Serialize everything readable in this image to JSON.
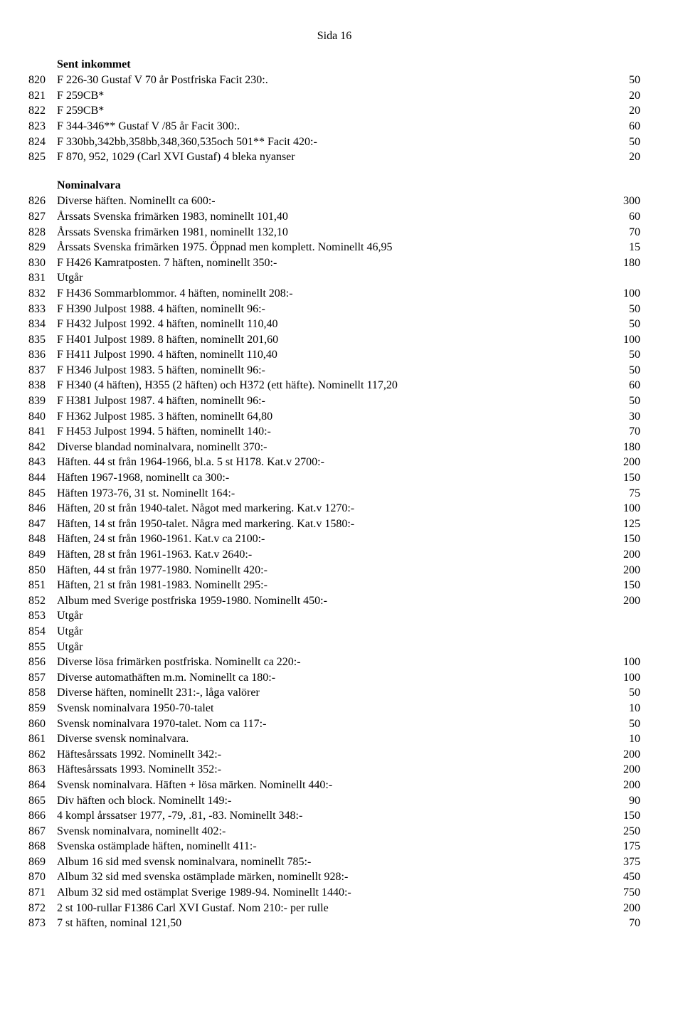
{
  "page_header": "Sida 16",
  "sections": [
    {
      "title": "Sent inkommet",
      "rows": [
        {
          "n": "820",
          "d": "F 226-30 Gustaf V 70 år Postfriska Facit 230:.",
          "v": "50"
        },
        {
          "n": "821",
          "d": "F 259CB*",
          "v": "20"
        },
        {
          "n": "822",
          "d": "F 259CB*",
          "v": "20"
        },
        {
          "n": "823",
          "d": "F 344-346** Gustaf V /85 år Facit 300:.",
          "v": "60"
        },
        {
          "n": "824",
          "d": "F 330bb,342bb,358bb,348,360,535och 501** Facit 420:-",
          "v": "50"
        },
        {
          "n": "825",
          "d": "F 870, 952, 1029 (Carl XVI Gustaf) 4 bleka nyanser",
          "v": "20"
        }
      ]
    },
    {
      "title": "Nominalvara",
      "rows": [
        {
          "n": "826",
          "d": "Diverse häften. Nominellt ca 600:-",
          "v": "300"
        },
        {
          "n": "827",
          "d": "Årssats Svenska frimärken 1983, nominellt 101,40",
          "v": "60"
        },
        {
          "n": "828",
          "d": "Årssats Svenska frimärken 1981, nominellt 132,10",
          "v": "70"
        },
        {
          "n": "829",
          "d": "Årssats Svenska frimärken 1975. Öppnad men komplett. Nominellt 46,95",
          "v": "15"
        },
        {
          "n": "830",
          "d": "F H426 Kamratposten. 7 häften, nominellt 350:-",
          "v": "180"
        },
        {
          "n": "831",
          "d": "Utgår",
          "v": ""
        },
        {
          "n": "832",
          "d": "F H436 Sommarblommor. 4 häften, nominellt 208:-",
          "v": "100"
        },
        {
          "n": "833",
          "d": "F H390 Julpost 1988. 4 häften, nominellt 96:-",
          "v": "50"
        },
        {
          "n": "834",
          "d": "F H432 Julpost 1992. 4 häften, nominellt 110,40",
          "v": "50"
        },
        {
          "n": "835",
          "d": "F H401 Julpost 1989. 8 häften, nominellt 201,60",
          "v": "100"
        },
        {
          "n": "836",
          "d": "F H411 Julpost 1990. 4 häften, nominellt 110,40",
          "v": "50"
        },
        {
          "n": "837",
          "d": "F H346 Julpost 1983. 5 häften, nominellt 96:-",
          "v": "50"
        },
        {
          "n": "838",
          "d": "F H340 (4 häften), H355 (2 häften) och H372 (ett häfte). Nominellt 117,20",
          "v": "60"
        },
        {
          "n": "839",
          "d": "F H381 Julpost 1987. 4 häften, nominellt 96:-",
          "v": "50"
        },
        {
          "n": "840",
          "d": "F H362 Julpost 1985. 3 häften, nominellt 64,80",
          "v": "30"
        },
        {
          "n": "841",
          "d": "F H453 Julpost 1994. 5 häften, nominellt 140:-",
          "v": "70"
        },
        {
          "n": "842",
          "d": "Diverse blandad nominalvara, nominellt 370:-",
          "v": "180"
        },
        {
          "n": "843",
          "d": "Häften. 44 st från 1964-1966, bl.a. 5 st H178. Kat.v 2700:-",
          "v": "200"
        },
        {
          "n": "844",
          "d": "Häften 1967-1968, nominellt ca 300:-",
          "v": "150"
        },
        {
          "n": "845",
          "d": "Häften 1973-76, 31 st. Nominellt 164:-",
          "v": "75"
        },
        {
          "n": "846",
          "d": "Häften, 20 st från 1940-talet. Något med markering. Kat.v 1270:-",
          "v": "100"
        },
        {
          "n": "847",
          "d": "Häften, 14 st från 1950-talet. Några med markering. Kat.v 1580:-",
          "v": "125"
        },
        {
          "n": "848",
          "d": "Häften, 24 st från 1960-1961. Kat.v ca 2100:-",
          "v": "150"
        },
        {
          "n": "849",
          "d": "Häften, 28 st från 1961-1963. Kat.v 2640:-",
          "v": "200"
        },
        {
          "n": "850",
          "d": "Häften, 44 st från 1977-1980. Nominellt 420:-",
          "v": "200"
        },
        {
          "n": "851",
          "d": "Häften, 21 st från 1981-1983. Nominellt 295:-",
          "v": "150"
        },
        {
          "n": "852",
          "d": "Album med Sverige postfriska 1959-1980. Nominellt 450:-",
          "v": "200"
        },
        {
          "n": "853",
          "d": "Utgår",
          "v": ""
        },
        {
          "n": "854",
          "d": "Utgår",
          "v": ""
        },
        {
          "n": "855",
          "d": "Utgår",
          "v": ""
        },
        {
          "n": "856",
          "d": "Diverse lösa frimärken postfriska. Nominellt ca 220:-",
          "v": "100"
        },
        {
          "n": "857",
          "d": "Diverse automathäften m.m. Nominellt ca 180:-",
          "v": "100"
        },
        {
          "n": "858",
          "d": "Diverse häften, nominellt 231:-, låga valörer",
          "v": "50"
        },
        {
          "n": "859",
          "d": "Svensk nominalvara 1950-70-talet",
          "v": "10"
        },
        {
          "n": "860",
          "d": "Svensk nominalvara 1970-talet. Nom ca 117:-",
          "v": "50"
        },
        {
          "n": "861",
          "d": "Diverse svensk nominalvara.",
          "v": "10"
        },
        {
          "n": "862",
          "d": "Häftesårssats 1992. Nominellt 342:-",
          "v": "200"
        },
        {
          "n": "863",
          "d": "Häftesårssats 1993. Nominellt 352:-",
          "v": "200"
        },
        {
          "n": "864",
          "d": "Svensk nominalvara. Häften + lösa märken. Nominellt 440:-",
          "v": "200"
        },
        {
          "n": "865",
          "d": "Div häften och block. Nominellt 149:-",
          "v": "90"
        },
        {
          "n": "866",
          "d": "4 kompl årssatser 1977, -79, .81, -83. Nominellt 348:-",
          "v": "150"
        },
        {
          "n": "867",
          "d": "Svensk nominalvara, nominellt 402:-",
          "v": "250"
        },
        {
          "n": "868",
          "d": "Svenska ostämplade häften, nominellt 411:-",
          "v": "175"
        },
        {
          "n": "869",
          "d": "Album 16 sid med svensk nominalvara, nominellt 785:-",
          "v": "375"
        },
        {
          "n": "870",
          "d": "Album 32 sid med svenska ostämplade märken, nominellt 928:-",
          "v": "450"
        },
        {
          "n": "871",
          "d": "Album 32 sid med ostämplat Sverige 1989-94. Nominellt 1440:-",
          "v": "750"
        },
        {
          "n": "872",
          "d": "2 st 100-rullar F1386 Carl XVI Gustaf. Nom 210:- per rulle",
          "v": "200"
        },
        {
          "n": "873",
          "d": "7 st häften, nominal 121,50",
          "v": "70"
        }
      ]
    }
  ]
}
